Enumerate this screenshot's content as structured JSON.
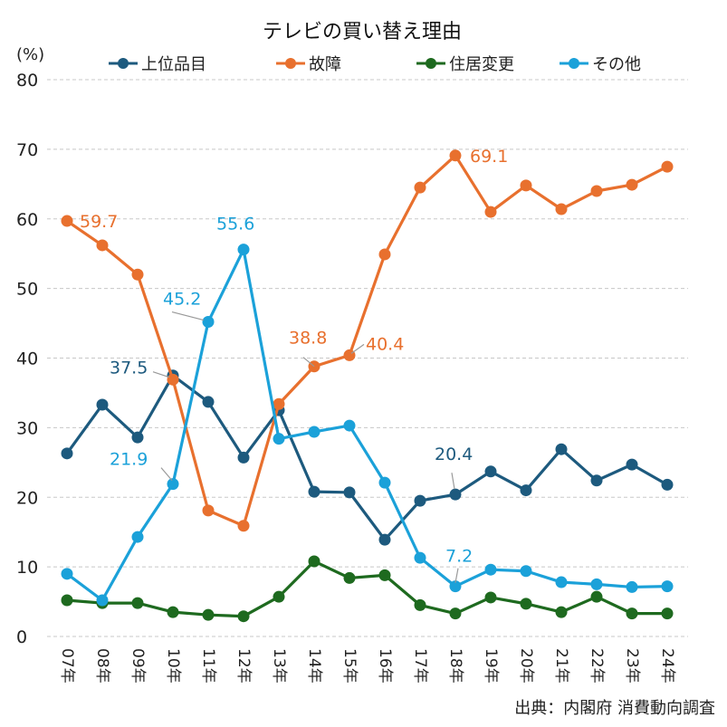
{
  "chart_data": {
    "type": "line",
    "title": "テレビの買い替え理由",
    "ylabel": "(%)",
    "xlabel": "",
    "ylim": [
      0,
      80
    ],
    "yticks": [
      0,
      10,
      20,
      30,
      40,
      50,
      60,
      70,
      80
    ],
    "grid": true,
    "legend_position": "top",
    "categories": [
      "07年",
      "08年",
      "09年",
      "10年",
      "11年",
      "12年",
      "13年",
      "14年",
      "15年",
      "16年",
      "17年",
      "18年",
      "19年",
      "20年",
      "21年",
      "22年",
      "23年",
      "24年"
    ],
    "series": [
      {
        "name": "上位品目",
        "color": "#1d5a7e",
        "values": [
          26.3,
          33.3,
          28.6,
          37.5,
          33.7,
          25.7,
          32.5,
          20.8,
          20.7,
          13.9,
          19.5,
          20.4,
          23.7,
          21.0,
          26.9,
          22.4,
          24.7,
          21.8
        ],
        "labels": [
          {
            "index": 3,
            "text": "37.5"
          },
          {
            "index": 11,
            "text": "20.4"
          }
        ]
      },
      {
        "name": "故障",
        "color": "#e8702e",
        "values": [
          59.7,
          56.2,
          52.0,
          36.9,
          18.1,
          15.9,
          33.4,
          38.8,
          40.4,
          54.9,
          64.5,
          69.1,
          61.0,
          64.8,
          61.4,
          64.0,
          64.9,
          67.5
        ],
        "labels": [
          {
            "index": 0,
            "text": "59.7"
          },
          {
            "index": 7,
            "text": "38.8"
          },
          {
            "index": 8,
            "text": "40.4"
          },
          {
            "index": 11,
            "text": "69.1"
          }
        ]
      },
      {
        "name": "住居変更",
        "color": "#1e6a1f",
        "values": [
          5.2,
          4.8,
          4.8,
          3.5,
          3.1,
          2.9,
          5.7,
          10.8,
          8.4,
          8.8,
          4.5,
          3.3,
          5.6,
          4.7,
          3.5,
          5.7,
          3.3,
          3.3
        ],
        "labels": []
      },
      {
        "name": "その他",
        "color": "#1ba1d9",
        "values": [
          9.0,
          5.2,
          14.3,
          21.9,
          45.2,
          55.6,
          28.4,
          29.4,
          30.3,
          22.1,
          11.3,
          7.2,
          9.6,
          9.4,
          7.8,
          7.5,
          7.1,
          7.2
        ],
        "labels": [
          {
            "index": 3,
            "text": "21.9"
          },
          {
            "index": 4,
            "text": "45.2"
          },
          {
            "index": 5,
            "text": "55.6"
          },
          {
            "index": 11,
            "text": "7.2"
          }
        ]
      }
    ],
    "source": "出典：内閣府 消費動向調査"
  }
}
